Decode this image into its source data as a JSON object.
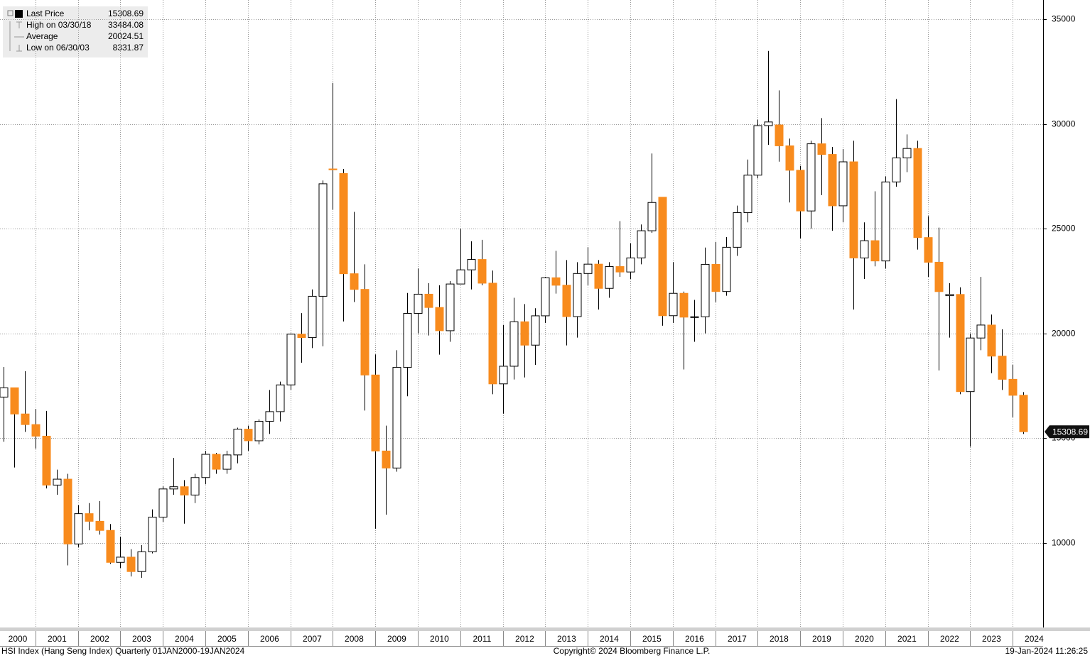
{
  "chart_data": {
    "type": "candlestick",
    "categories": [
      "2000",
      null,
      null,
      null,
      "2001",
      null,
      null,
      null,
      "2002",
      null,
      null,
      null,
      "2003",
      null,
      null,
      null,
      "2004",
      null,
      null,
      null,
      "2005",
      null,
      null,
      null,
      "2006",
      null,
      null,
      null,
      "2007",
      null,
      null,
      null,
      "2008",
      null,
      null,
      null,
      "2009",
      null,
      null,
      null,
      "2010",
      null,
      null,
      null,
      "2011",
      null,
      null,
      null,
      "2012",
      null,
      null,
      null,
      "2013",
      null,
      null,
      null,
      "2014",
      null,
      null,
      null,
      "2015",
      null,
      null,
      null,
      "2016",
      null,
      null,
      null,
      "2017",
      null,
      null,
      null,
      "2018",
      null,
      null,
      null,
      "2019",
      null,
      null,
      null,
      "2020",
      null,
      null,
      null,
      "2021",
      null,
      null,
      null,
      "2022",
      null,
      null,
      null,
      "2023",
      null,
      null,
      null,
      "2024"
    ],
    "open": [
      16962,
      17406,
      16155,
      15649,
      15096,
      12761,
      13043,
      9951,
      11397,
      11033,
      10598,
      9072,
      9321,
      8634,
      9577,
      11230,
      12576,
      12682,
      12286,
      13121,
      14230,
      13517,
      14201,
      15429,
      14876,
      15805,
      16267,
      17543,
      19965,
      19801,
      21773,
      27850,
      27632,
      22849,
      22102,
      18016,
      14387,
      13576,
      18379,
      20955,
      21873,
      21239,
      20129,
      22359,
      23035,
      23528,
      22398,
      17592,
      18434,
      20556,
      19441,
      20840,
      22657,
      22300,
      20803,
      22860,
      23306,
      22151,
      23191,
      22933,
      23605,
      24901,
      26500,
      20846,
      21914,
      20777,
      20794,
      23297,
      22001,
      24112,
      25765,
      27554,
      29919,
      29950,
      28955,
      27789,
      25846,
      29051,
      28543,
      26092,
      28190,
      23603,
      24427,
      23459,
      27231,
      28378,
      28828,
      24576,
      23398,
      21800,
      21860,
      17223,
      19781,
      20400,
      18916,
      17810,
      17047
    ],
    "high": [
      18400,
      17400,
      18200,
      16400,
      16300,
      13500,
      13300,
      11800,
      11900,
      12000,
      10900,
      10300,
      9700,
      9900,
      11600,
      12700,
      14058,
      13000,
      13300,
      14400,
      14300,
      14400,
      15500,
      15600,
      15900,
      17300,
      17700,
      20000,
      20971,
      22100,
      27300,
      31958,
      27853,
      25800,
      23300,
      19000,
      15600,
      19200,
      21929,
      23100,
      22400,
      22300,
      22500,
      24988,
      24400,
      24468,
      23000,
      20400,
      21700,
      21400,
      21200,
      22700,
      23944,
      23500,
      23400,
      24111,
      23500,
      23400,
      25362,
      24300,
      25200,
      28588,
      26500,
      23400,
      22000,
      21600,
      24100,
      24365,
      24600,
      26100,
      28300,
      30200,
      33484.08,
      31600,
      29300,
      28000,
      29200,
      30280,
      28900,
      28800,
      29200,
      25300,
      26782,
      27500,
      31183,
      29500,
      29200,
      25600,
      25050,
      22400,
      22200,
      20000,
      22700,
      20900,
      20200,
      18500,
      17200
    ],
    "low": [
      14830,
      13600,
      15300,
      14500,
      12600,
      12300,
      8930,
      9800,
      10600,
      10400,
      9000,
      8800,
      8400,
      8331.87,
      9500,
      11000,
      12300,
      10918,
      11900,
      12800,
      13300,
      13300,
      13800,
      14400,
      14700,
      15200,
      15800,
      17300,
      18600,
      19300,
      19386,
      25900,
      20572,
      21500,
      16320,
      10676,
      11345,
      13400,
      17000,
      20000,
      19900,
      18985,
      19600,
      22400,
      22100,
      22300,
      17100,
      16170,
      17800,
      17900,
      18500,
      20500,
      21900,
      19426,
      19800,
      22300,
      21137,
      21700,
      22700,
      22600,
      23300,
      24800,
      20368,
      20500,
      18279,
      19600,
      20000,
      21500,
      21800,
      23700,
      25300,
      27400,
      29000,
      28200,
      26250,
      24541,
      25000,
      26600,
      24900,
      25300,
      21139,
      22600,
      23200,
      23100,
      27000,
      27700,
      24000,
      22700,
      18235,
      19800,
      17100,
      14597,
      19200,
      18100,
      17300,
      16000,
      15200
    ],
    "close": [
      17406,
      16155,
      15649,
      15096,
      12761,
      13043,
      9951,
      11397,
      11033,
      10598,
      9072,
      9321,
      8634,
      9577,
      11230,
      12576,
      12682,
      12286,
      13121,
      14230,
      13517,
      14201,
      15429,
      14876,
      15805,
      16267,
      17543,
      19965,
      19801,
      21773,
      27143,
      27813,
      22849,
      22102,
      18016,
      14387,
      13576,
      18379,
      20955,
      21873,
      21239,
      20129,
      22359,
      23035,
      23528,
      22398,
      17592,
      18434,
      20556,
      19441,
      20840,
      22657,
      22300,
      20803,
      22860,
      23306,
      22151,
      23191,
      22933,
      23605,
      24901,
      26250,
      20846,
      21914,
      20777,
      20794,
      23297,
      22001,
      24112,
      25765,
      27554,
      29919,
      30093,
      28955,
      27789,
      25846,
      29051,
      28543,
      26092,
      28190,
      23603,
      24427,
      23459,
      27231,
      28378,
      28828,
      24576,
      23398,
      21997,
      21860,
      17223,
      19781,
      20400,
      18916,
      17810,
      17047,
      15308.69
    ],
    "up_color": "#ffffff",
    "down_color": "#f88b1d",
    "ylim": [
      5930,
      35915
    ],
    "yticks": [
      10000,
      15000,
      20000,
      25000,
      30000,
      35000
    ],
    "grid": true,
    "legend": [
      {
        "label": "Last Price",
        "value": 15308.69
      },
      {
        "label": "High on 03/30/18",
        "value": 33484.08
      },
      {
        "label": "Average",
        "value": 20024.51
      },
      {
        "label": "Low on 06/30/03",
        "value": 8331.87
      }
    ],
    "footer": {
      "left": "HSI Index (Hang Seng Index)  Quarterly 01JAN2000-19JAN2024",
      "center": "Copyright© 2024 Bloomberg Finance L.P.",
      "right": "19-Jan-2024 11:26:25"
    }
  }
}
